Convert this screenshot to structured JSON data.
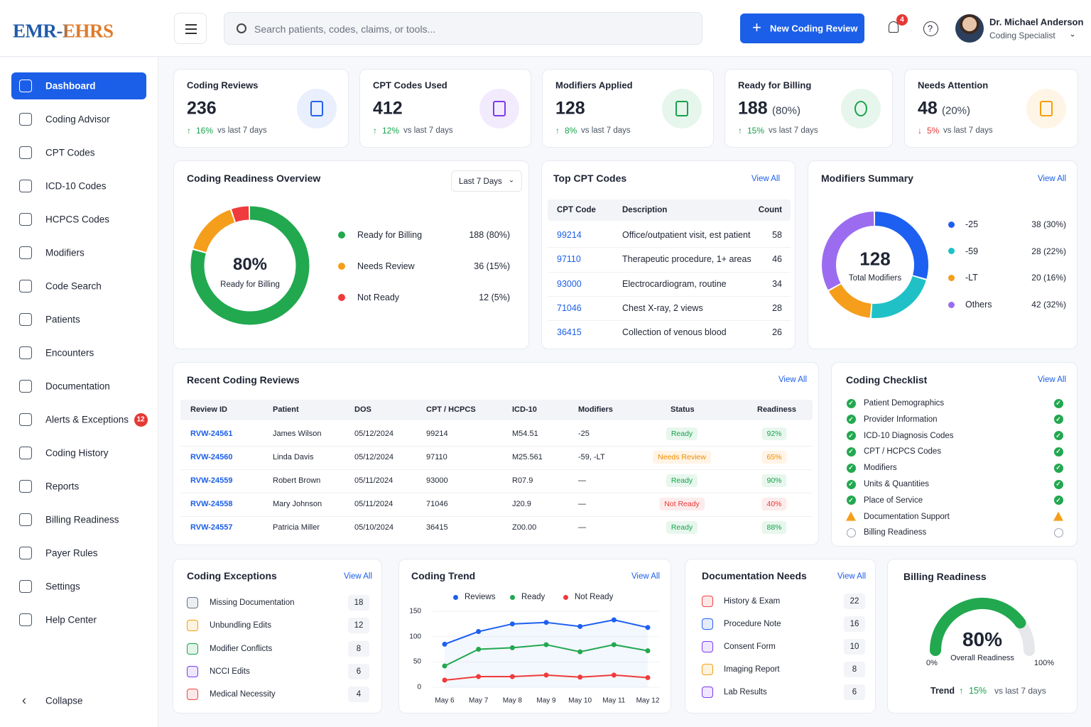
{
  "header": {
    "brand": "EMR-EHRS",
    "search_placeholder": "Search patients, codes, claims, or tools...",
    "new_button": "New Coding Review",
    "notification_count": 4,
    "user_name": "Dr. Michael Anderson",
    "user_role": "Coding Specialist"
  },
  "nav": {
    "items": [
      {
        "label": "Dashboard",
        "active": true
      },
      {
        "label": "Coding Advisor"
      },
      {
        "label": "CPT Codes"
      },
      {
        "label": "ICD-10 Codes"
      },
      {
        "label": "HCPCS Codes"
      },
      {
        "label": "Modifiers"
      },
      {
        "label": "Code Search"
      },
      {
        "label": "Patients"
      },
      {
        "label": "Encounters"
      },
      {
        "label": "Documentation"
      },
      {
        "label": "Alerts & Exceptions",
        "badge": 12
      },
      {
        "label": "Coding History"
      },
      {
        "label": "Reports"
      },
      {
        "label": "Billing Readiness"
      },
      {
        "label": "Payer Rules"
      },
      {
        "label": "Settings"
      },
      {
        "label": "Help Center"
      }
    ],
    "collapse": "Collapse"
  },
  "kpis": [
    {
      "title": "Coding Reviews",
      "value": 236,
      "change": "16%",
      "trend": "up",
      "compare": "vs last 7 days",
      "color": "#2563eb"
    },
    {
      "title": "CPT Codes Used",
      "value": 412,
      "change": "12%",
      "trend": "up",
      "compare": "vs last 7 days",
      "color": "#7c3aed"
    },
    {
      "title": "Modifiers Applied",
      "value": 128,
      "change": "8%",
      "trend": "up",
      "compare": "vs last 7 days",
      "color": "#16a34a"
    },
    {
      "title": "Ready for Billing",
      "value": 188,
      "share": "(80%)",
      "change": "15%",
      "trend": "up",
      "compare": "vs last 7 days",
      "color": "#16a34a"
    },
    {
      "title": "Needs Attention",
      "value": 48,
      "share": "(20%)",
      "change": "5%",
      "trend": "down",
      "compare": "vs last 7 days",
      "color": "#f59e0b"
    }
  ],
  "readiness": {
    "title": "Coding Readiness Overview",
    "period": "Last 7 Days",
    "center_value": "80%",
    "center_label": "Ready for Billing",
    "items": [
      {
        "name": "Ready for Billing",
        "value": 188,
        "label": "188 (80%)",
        "color": "#22a84f"
      },
      {
        "name": "Needs Review",
        "value": 36,
        "label": "36 (15%)",
        "color": "#f59e1b"
      },
      {
        "name": "Not Ready",
        "value": 12,
        "label": "12 (5%)",
        "color": "#ef3b3b"
      }
    ]
  },
  "top_cpt": {
    "title": "Top CPT Codes",
    "view_all": "View All",
    "columns": [
      "CPT Code",
      "Description",
      "Count"
    ],
    "rows": [
      [
        "99214",
        "Office/outpatient visit, est patient",
        58
      ],
      [
        "97110",
        "Therapeutic procedure, 1+ areas",
        46
      ],
      [
        "93000",
        "Electrocardiogram, routine",
        34
      ],
      [
        "71046",
        "Chest X-ray, 2 views",
        28
      ],
      [
        "36415",
        "Collection of venous blood",
        26
      ]
    ]
  },
  "modifiers": {
    "title": "Modifiers Summary",
    "view_all": "View All",
    "total": 128,
    "total_label": "Total Modifiers",
    "items": [
      {
        "name": "-25",
        "value": 38,
        "label": "38 (30%)",
        "color": "#1d5ff0"
      },
      {
        "name": "-59",
        "value": 28,
        "label": "28 (22%)",
        "color": "#1fc1c7"
      },
      {
        "name": "-LT",
        "value": 20,
        "label": "20 (16%)",
        "color": "#f59e1b"
      },
      {
        "name": "Others",
        "value": 42,
        "label": "42 (32%)",
        "color": "#9b6cf0"
      }
    ]
  },
  "recent": {
    "title": "Recent Coding Reviews",
    "view_all": "View All",
    "columns": [
      "Review ID",
      "Patient",
      "DOS",
      "CPT / HCPCS",
      "ICD-10",
      "Modifiers",
      "Status",
      "Readiness"
    ],
    "rows": [
      {
        "cells": [
          "RVW-24561",
          "James Wilson",
          "05/12/2024",
          "99214",
          "M54.51",
          "-25",
          "Ready",
          "92%"
        ],
        "tone": "ok"
      },
      {
        "cells": [
          "RVW-24560",
          "Linda Davis",
          "05/12/2024",
          "97110",
          "M25.561",
          "-59, -LT",
          "Needs Review",
          "65%"
        ],
        "tone": "warn"
      },
      {
        "cells": [
          "RVW-24559",
          "Robert Brown",
          "05/11/2024",
          "93000",
          "R07.9",
          "—",
          "Ready",
          "90%"
        ],
        "tone": "ok"
      },
      {
        "cells": [
          "RVW-24558",
          "Mary Johnson",
          "05/11/2024",
          "71046",
          "J20.9",
          "—",
          "Not Ready",
          "40%"
        ],
        "tone": "bad"
      },
      {
        "cells": [
          "RVW-24557",
          "Patricia Miller",
          "05/10/2024",
          "36415",
          "Z00.00",
          "—",
          "Ready",
          "88%"
        ],
        "tone": "ok"
      }
    ]
  },
  "checklist": {
    "title": "Coding Checklist",
    "view_all": "View All",
    "items": [
      {
        "label": "Patient Demographics",
        "state": "done"
      },
      {
        "label": "Provider Information",
        "state": "done"
      },
      {
        "label": "ICD-10 Diagnosis Codes",
        "state": "done"
      },
      {
        "label": "CPT / HCPCS Codes",
        "state": "done"
      },
      {
        "label": "Modifiers",
        "state": "done"
      },
      {
        "label": "Units & Quantities",
        "state": "done"
      },
      {
        "label": "Place of Service",
        "state": "done"
      },
      {
        "label": "Documentation Support",
        "state": "warning"
      },
      {
        "label": "Billing Readiness",
        "state": "pending"
      }
    ]
  },
  "exceptions": {
    "title": "Coding Exceptions",
    "view_all": "View All",
    "items": [
      {
        "label": "Missing Documentation",
        "count": 18,
        "color": "#64748b"
      },
      {
        "label": "Unbundling Edits",
        "count": 12,
        "color": "#f59e0b"
      },
      {
        "label": "Modifier Conflicts",
        "count": 8,
        "color": "#16a34a"
      },
      {
        "label": "NCCI Edits",
        "count": 6,
        "color": "#7c3aed"
      },
      {
        "label": "Medical Necessity",
        "count": 4,
        "color": "#ef4444"
      }
    ]
  },
  "trend": {
    "type": "line",
    "title": "Coding Trend",
    "view_all": "View All",
    "categories": [
      "May 6",
      "May 7",
      "May 8",
      "May 9",
      "May 10",
      "May 11",
      "May 12"
    ],
    "series": [
      {
        "name": "Reviews",
        "color": "#1d5ff0",
        "values": [
          85,
          110,
          125,
          128,
          120,
          133,
          118
        ]
      },
      {
        "name": "Ready",
        "color": "#22a84f",
        "values": [
          42,
          75,
          78,
          84,
          70,
          84,
          72
        ]
      },
      {
        "name": "Not Ready",
        "color": "#ef3b3b",
        "values": [
          14,
          21,
          21,
          24,
          20,
          24,
          19
        ]
      }
    ],
    "ylim": [
      0,
      150
    ],
    "yticks": [
      0,
      50,
      100,
      150
    ]
  },
  "documentation": {
    "title": "Documentation Needs",
    "view_all": "View All",
    "items": [
      {
        "label": "History & Exam",
        "count": 22,
        "color": "#ef4444"
      },
      {
        "label": "Procedure Note",
        "count": 16,
        "color": "#2563eb"
      },
      {
        "label": "Consent Form",
        "count": 10,
        "color": "#7c3aed"
      },
      {
        "label": "Imaging Report",
        "count": 8,
        "color": "#f59e0b"
      },
      {
        "label": "Lab Results",
        "count": 6,
        "color": "#7c3aed"
      }
    ]
  },
  "billing": {
    "title": "Billing Readiness",
    "value": 80,
    "value_label": "80%",
    "caption": "Overall Readiness",
    "min": 0,
    "min_label": "0%",
    "max": 100,
    "max_label": "100%",
    "trend_label": "Trend",
    "trend_change": "15%",
    "trend_compare": "vs last 7 days"
  }
}
